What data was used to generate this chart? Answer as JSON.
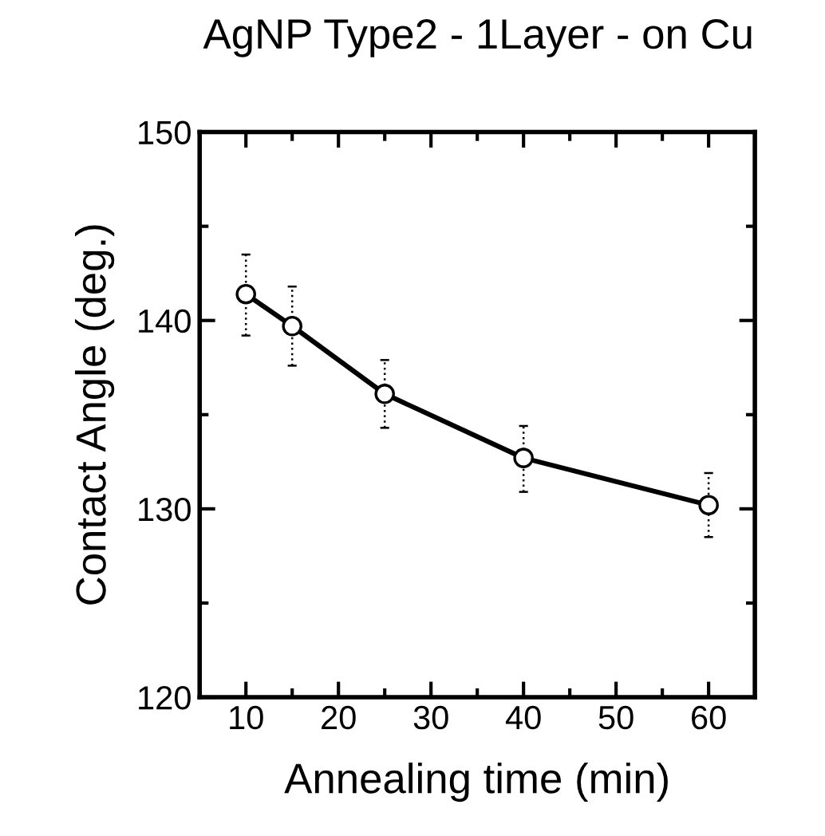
{
  "chart_data": {
    "type": "line",
    "title": "AgNP Type2 - 1Layer - on Cu",
    "xlabel": "Annealing time (min)",
    "ylabel": "Contact Angle (deg.)",
    "x": [
      10,
      15,
      25,
      40,
      60
    ],
    "series": [
      {
        "color": "#000000",
        "values": [
          141.4,
          139.7,
          136.1,
          132.7,
          130.2
        ],
        "errors": [
          [
            139.2,
            143.5
          ],
          [
            137.6,
            141.8
          ],
          [
            134.3,
            137.9
          ],
          [
            130.9,
            134.4
          ],
          [
            128.5,
            131.9
          ]
        ]
      }
    ],
    "marker": "circle",
    "line_style": "solid",
    "grid": false,
    "legend": false,
    "xlim": [
      5,
      65
    ],
    "xticks": [
      10,
      {
        "value": 15,
        "label": null
      },
      20,
      {
        "value": 25,
        "label": null
      },
      30,
      {
        "value": 35,
        "label": null
      },
      40,
      {
        "value": 45,
        "label": null
      },
      50,
      {
        "value": 55,
        "label": null
      },
      60
    ],
    "ylim": [
      120,
      150
    ],
    "yticks": [
      120,
      {
        "value": 125,
        "label": null
      },
      130,
      {
        "value": 135,
        "label": null
      },
      140,
      {
        "value": 145,
        "label": null
      },
      150
    ]
  }
}
